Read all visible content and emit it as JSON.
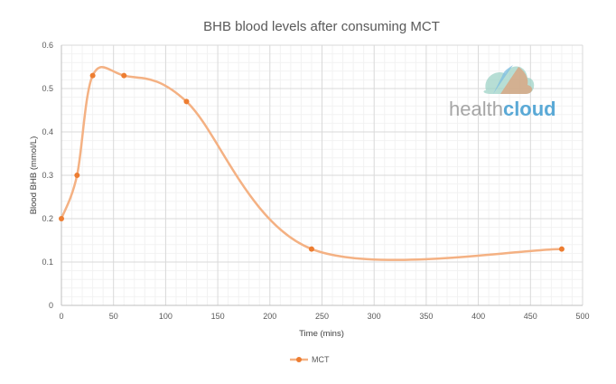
{
  "chart_data": {
    "type": "line",
    "title": "BHB blood levels after consuming MCT",
    "xlabel": "Time (mins)",
    "ylabel": "Blood BHB (mmol/L)",
    "xlim": [
      0,
      500
    ],
    "ylim": [
      0,
      0.6
    ],
    "x_ticks": [
      0,
      50,
      100,
      150,
      200,
      250,
      300,
      350,
      400,
      450,
      500
    ],
    "y_ticks": [
      0,
      0.1,
      0.2,
      0.3,
      0.4,
      0.5,
      0.6
    ],
    "grid": true,
    "legend_position": "bottom",
    "smooth": true,
    "series": [
      {
        "name": "MCT",
        "color": "#f4b183",
        "marker_color": "#ed7d31",
        "x": [
          0,
          15,
          30,
          60,
          120,
          240,
          480
        ],
        "y": [
          0.2,
          0.3,
          0.53,
          0.53,
          0.47,
          0.13,
          0.13
        ]
      }
    ]
  },
  "watermark": {
    "light_text": "health",
    "bold_text": "cloud",
    "light_color": "#a6a6a6",
    "bold_color": "#5aa9d6"
  }
}
